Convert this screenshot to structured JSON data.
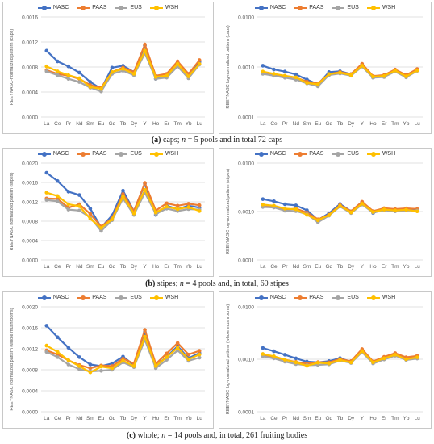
{
  "colors": {
    "NASC": "#4472C4",
    "PAAS": "#ED7D31",
    "EUS": "#A5A5A5",
    "WSH": "#FFC000"
  },
  "captions": {
    "a": {
      "tag": "(a)",
      "rest_1": " caps; ",
      "n": "n",
      "rest_2": " = 5 pools and in total 72 caps"
    },
    "b": {
      "tag": "(b)",
      "rest_1": " stipes; ",
      "n": "n",
      "rest_2": " = 4 pools and, in total, 60 stipes"
    },
    "c": {
      "tag": "(c)",
      "rest_1": " whole; ",
      "n": "n",
      "rest_2": " = 14 pools and, in total, 261 fruiting bodies"
    }
  },
  "chart_data": [
    {
      "id": "caps-linear",
      "type": "line",
      "scale": "linear",
      "ylabel": "REEYNASC-normalized pattern (caps)",
      "ylim": [
        0,
        0.0016
      ],
      "yticks": [
        "0.0000",
        "0.0004",
        "0.0008",
        "0.0012",
        "0.0016"
      ],
      "ytick_values": [
        0,
        0.0004,
        0.0008,
        0.0012,
        0.0016
      ],
      "categories": [
        "La",
        "Ce",
        "Pr",
        "Nd",
        "Sm",
        "Eu",
        "Gd",
        "Tb",
        "Dy",
        "Y",
        "Ho",
        "Er",
        "Tm",
        "Yb",
        "Lu"
      ],
      "legend": [
        "NASC",
        "PAAS",
        "EUS",
        "WSH"
      ],
      "series": [
        {
          "name": "NASC",
          "values": [
            0.00106,
            0.00089,
            0.00081,
            0.00071,
            0.00056,
            0.00045,
            0.00079,
            0.00082,
            0.00072,
            0.00114,
            0.00061,
            0.00066,
            0.00084,
            0.00064,
            0.00088
          ]
        },
        {
          "name": "PAAS",
          "values": [
            0.00075,
            0.00069,
            0.00066,
            0.00061,
            0.00051,
            0.00047,
            0.00072,
            0.00079,
            0.00072,
            0.00116,
            0.00066,
            0.00069,
            0.00089,
            0.00069,
            0.00091
          ]
        },
        {
          "name": "EUS",
          "values": [
            0.00073,
            0.00067,
            0.00061,
            0.00056,
            0.00047,
            0.00041,
            0.00069,
            0.00074,
            0.00067,
            0.00102,
            0.00061,
            0.00063,
            0.00081,
            0.00062,
            0.00084
          ]
        },
        {
          "name": "WSH",
          "values": [
            0.00081,
            0.00073,
            0.00067,
            0.00062,
            0.00048,
            0.00045,
            0.00072,
            0.00077,
            0.00069,
            0.00106,
            0.00064,
            0.00066,
            0.00085,
            0.00065,
            0.00085
          ]
        }
      ]
    },
    {
      "id": "caps-log",
      "type": "line",
      "scale": "log",
      "ylabel": "REEYNASC log-normalized pattern (caps)",
      "ylim": [
        0.0001,
        0.01
      ],
      "yticks": [
        "0.0001",
        "0.0010",
        "0.0100"
      ],
      "ytick_values": [
        0.0001,
        0.001,
        0.01
      ],
      "categories": [
        "La",
        "Ce",
        "Pr",
        "Nd",
        "Sm",
        "Eu",
        "Gd",
        "Tb",
        "Dy",
        "Y",
        "Ho",
        "Er",
        "Tm",
        "Yb",
        "Lu"
      ],
      "legend": [
        "NASC",
        "PAAS",
        "EUS",
        "WSH"
      ],
      "series": [
        {
          "name": "NASC",
          "values": [
            0.00106,
            0.00089,
            0.00081,
            0.00071,
            0.00056,
            0.00045,
            0.00079,
            0.00082,
            0.00072,
            0.00114,
            0.00061,
            0.00066,
            0.00084,
            0.00064,
            0.00088
          ]
        },
        {
          "name": "PAAS",
          "values": [
            0.00075,
            0.00069,
            0.00066,
            0.00061,
            0.00051,
            0.00047,
            0.00072,
            0.00079,
            0.00072,
            0.00116,
            0.00066,
            0.00069,
            0.00089,
            0.00069,
            0.00091
          ]
        },
        {
          "name": "EUS",
          "values": [
            0.00073,
            0.00067,
            0.00061,
            0.00056,
            0.00047,
            0.00041,
            0.00069,
            0.00074,
            0.00067,
            0.00102,
            0.00061,
            0.00063,
            0.00081,
            0.00062,
            0.00084
          ]
        },
        {
          "name": "WSH",
          "values": [
            0.00081,
            0.00073,
            0.00067,
            0.00062,
            0.00048,
            0.00045,
            0.00072,
            0.00077,
            0.00069,
            0.00106,
            0.00064,
            0.00066,
            0.00085,
            0.00065,
            0.00085
          ]
        }
      ]
    },
    {
      "id": "stipes-linear",
      "type": "line",
      "scale": "linear",
      "ylabel": "REEYNASC normalized pattern (stipes)",
      "ylim": [
        0,
        0.002
      ],
      "yticks": [
        "0.0000",
        "0.0004",
        "0.0008",
        "0.0012",
        "0.0016",
        "0.0020"
      ],
      "ytick_values": [
        0,
        0.0004,
        0.0008,
        0.0012,
        0.0016,
        0.002
      ],
      "categories": [
        "La",
        "Ce",
        "Pr",
        "Nd",
        "Sm",
        "Eu",
        "Gd",
        "Tb",
        "Dy",
        "Y",
        "Ho",
        "Er",
        "Tm",
        "Yb",
        "Lu"
      ],
      "legend": [
        "NASC",
        "PAAS",
        "EUS",
        "WSH"
      ],
      "series": [
        {
          "name": "NASC",
          "values": [
            0.0018,
            0.00163,
            0.00141,
            0.00134,
            0.00106,
            0.00067,
            0.00092,
            0.00143,
            0.00101,
            0.00157,
            0.00093,
            0.00112,
            0.00105,
            0.00112,
            0.00108
          ]
        },
        {
          "name": "PAAS",
          "values": [
            0.00127,
            0.00126,
            0.00108,
            0.00115,
            0.00095,
            0.00069,
            0.00086,
            0.00136,
            0.00101,
            0.00159,
            0.00102,
            0.00117,
            0.00112,
            0.00116,
            0.00113
          ]
        },
        {
          "name": "EUS",
          "values": [
            0.00124,
            0.00121,
            0.00104,
            0.00102,
            0.00088,
            0.0006,
            0.00082,
            0.00127,
            0.00093,
            0.00139,
            0.00095,
            0.00106,
            0.00101,
            0.00105,
            0.00104
          ]
        },
        {
          "name": "WSH",
          "values": [
            0.00139,
            0.00132,
            0.00115,
            0.00111,
            0.00085,
            0.00066,
            0.00084,
            0.00131,
            0.00096,
            0.00145,
            0.00098,
            0.0011,
            0.00105,
            0.00109,
            0.00101
          ]
        }
      ]
    },
    {
      "id": "stipes-log",
      "type": "line",
      "scale": "log",
      "ylabel": "REEYNASC log-normalized pattern (stipes)",
      "ylim": [
        0.0001,
        0.01
      ],
      "yticks": [
        "0.0001",
        "0.0010",
        "0.0100"
      ],
      "ytick_values": [
        0.0001,
        0.001,
        0.01
      ],
      "categories": [
        "La",
        "Ce",
        "Pr",
        "Nd",
        "Sm",
        "Eu",
        "Gd",
        "Tb",
        "Dy",
        "Y",
        "Ho",
        "Er",
        "Tm",
        "Yb",
        "Lu"
      ],
      "legend": [
        "NASC",
        "PAAS",
        "EUS",
        "WSH"
      ],
      "series": [
        {
          "name": "NASC",
          "values": [
            0.0018,
            0.00163,
            0.00141,
            0.00134,
            0.00106,
            0.00067,
            0.00092,
            0.00143,
            0.00101,
            0.00157,
            0.00093,
            0.00112,
            0.00105,
            0.00112,
            0.00108
          ]
        },
        {
          "name": "PAAS",
          "values": [
            0.00127,
            0.00126,
            0.00108,
            0.00115,
            0.00095,
            0.00069,
            0.00086,
            0.00136,
            0.00101,
            0.00159,
            0.00102,
            0.00117,
            0.00112,
            0.00116,
            0.00113
          ]
        },
        {
          "name": "EUS",
          "values": [
            0.00124,
            0.00121,
            0.00104,
            0.00102,
            0.00088,
            0.0006,
            0.00082,
            0.00127,
            0.00093,
            0.00139,
            0.00095,
            0.00106,
            0.00101,
            0.00105,
            0.00104
          ]
        },
        {
          "name": "WSH",
          "values": [
            0.00139,
            0.00132,
            0.00115,
            0.00111,
            0.00085,
            0.00066,
            0.00084,
            0.00131,
            0.00096,
            0.00145,
            0.00098,
            0.0011,
            0.00105,
            0.00109,
            0.00101
          ]
        }
      ]
    },
    {
      "id": "whole-linear",
      "type": "line",
      "scale": "linear",
      "ylabel": "REEYNASC normalized pattern (whole mushrooms)",
      "ylim": [
        0,
        0.002
      ],
      "yticks": [
        "0.0000",
        "0.0004",
        "0.0008",
        "0.0012",
        "0.0016",
        "0.0020"
      ],
      "ytick_values": [
        0,
        0.0004,
        0.0008,
        0.0012,
        0.0016,
        0.002
      ],
      "categories": [
        "La",
        "Ce",
        "Pr",
        "Nd",
        "Sm",
        "Eu",
        "Gd",
        "Tb",
        "Dy",
        "Y",
        "Ho",
        "Er",
        "Tm",
        "Yb",
        "Lu"
      ],
      "legend": [
        "NASC",
        "PAAS",
        "EUS",
        "WSH"
      ],
      "series": [
        {
          "name": "NASC",
          "values": [
            0.00164,
            0.00142,
            0.00122,
            0.00104,
            0.0009,
            0.00087,
            0.00092,
            0.00105,
            0.00089,
            0.00152,
            0.00087,
            0.00105,
            0.00125,
            0.00102,
            0.00112
          ]
        },
        {
          "name": "PAAS",
          "values": [
            0.00117,
            0.00109,
            0.00098,
            0.00089,
            0.00083,
            0.00088,
            0.00087,
            0.00101,
            0.00092,
            0.00156,
            0.00091,
            0.00111,
            0.00131,
            0.00109,
            0.00116
          ]
        },
        {
          "name": "EUS",
          "values": [
            0.00114,
            0.00104,
            0.0009,
            0.00081,
            0.00077,
            0.00078,
            0.0008,
            0.00094,
            0.00085,
            0.00137,
            0.00083,
            0.00099,
            0.00117,
            0.00097,
            0.00103
          ]
        },
        {
          "name": "WSH",
          "values": [
            0.00126,
            0.00114,
            0.00098,
            0.00087,
            0.00075,
            0.00086,
            0.00083,
            0.00097,
            0.00087,
            0.00143,
            0.00087,
            0.00104,
            0.00122,
            0.001,
            0.00109
          ]
        }
      ]
    },
    {
      "id": "whole-log",
      "type": "line",
      "scale": "log",
      "ylabel": "REEYNASC log-normalized pattern (whole mushrooms)",
      "ylim": [
        0.0001,
        0.01
      ],
      "yticks": [
        "0.0001",
        "0.0010",
        "0.0100"
      ],
      "ytick_values": [
        0.0001,
        0.001,
        0.01
      ],
      "categories": [
        "La",
        "Ce",
        "Pr",
        "Nd",
        "Sm",
        "Eu",
        "Gd",
        "Tb",
        "Dy",
        "Y",
        "Ho",
        "Er",
        "Tm",
        "Yb",
        "Lu"
      ],
      "legend": [
        "NASC",
        "PAAS",
        "EUS",
        "WSH"
      ],
      "series": [
        {
          "name": "NASC",
          "values": [
            0.00164,
            0.00142,
            0.00122,
            0.00104,
            0.0009,
            0.00087,
            0.00092,
            0.00105,
            0.00089,
            0.00152,
            0.00087,
            0.00105,
            0.00125,
            0.00102,
            0.00112
          ]
        },
        {
          "name": "PAAS",
          "values": [
            0.00117,
            0.00109,
            0.00098,
            0.00089,
            0.00083,
            0.00088,
            0.00087,
            0.00101,
            0.00092,
            0.00156,
            0.00091,
            0.00111,
            0.00131,
            0.00109,
            0.00116
          ]
        },
        {
          "name": "EUS",
          "values": [
            0.00114,
            0.00104,
            0.0009,
            0.00081,
            0.00077,
            0.00078,
            0.0008,
            0.00094,
            0.00085,
            0.00137,
            0.00083,
            0.00099,
            0.00117,
            0.00097,
            0.00103
          ]
        },
        {
          "name": "WSH",
          "values": [
            0.00126,
            0.00114,
            0.00098,
            0.00087,
            0.00075,
            0.00086,
            0.00083,
            0.00097,
            0.00087,
            0.00143,
            0.00087,
            0.00104,
            0.00122,
            0.001,
            0.00109
          ]
        }
      ]
    }
  ]
}
